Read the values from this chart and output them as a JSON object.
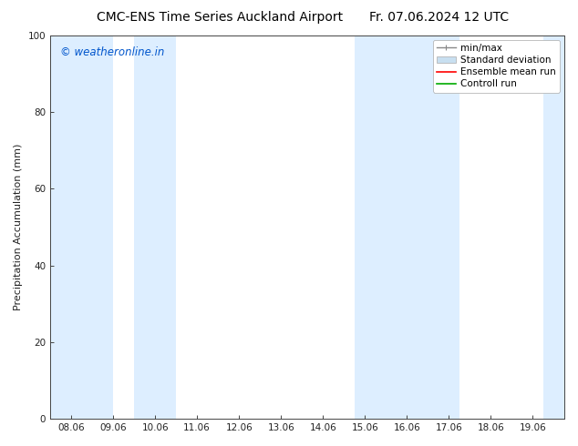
{
  "title_left": "CMC-ENS Time Series Auckland Airport",
  "title_right": "Fr. 07.06.2024 12 UTC",
  "ylabel": "Precipitation Accumulation (mm)",
  "xlabel": "",
  "watermark": "© weatheronline.in",
  "watermark_color": "#0055cc",
  "ylim": [
    0,
    100
  ],
  "xlim_start": 7.5,
  "xlim_end": 19.75,
  "xtick_labels": [
    "08.06",
    "09.06",
    "10.06",
    "11.06",
    "12.06",
    "13.06",
    "14.06",
    "15.06",
    "16.06",
    "17.06",
    "18.06",
    "19.06"
  ],
  "xtick_positions": [
    8.0,
    9.0,
    10.0,
    11.0,
    12.0,
    13.0,
    14.0,
    15.0,
    16.0,
    17.0,
    18.0,
    19.0
  ],
  "ytick_labels": [
    "0",
    "20",
    "40",
    "60",
    "80",
    "100"
  ],
  "ytick_positions": [
    0,
    20,
    40,
    60,
    80,
    100
  ],
  "shaded_bands": [
    {
      "x_start": 7.5,
      "x_end": 9.0,
      "color": "#ddeeff",
      "alpha": 1.0
    },
    {
      "x_start": 9.5,
      "x_end": 10.5,
      "color": "#ddeeff",
      "alpha": 1.0
    },
    {
      "x_start": 14.75,
      "x_end": 15.25,
      "color": "#ddeeff",
      "alpha": 1.0
    },
    {
      "x_start": 15.25,
      "x_end": 17.25,
      "color": "#ddeeff",
      "alpha": 1.0
    },
    {
      "x_start": 19.25,
      "x_end": 19.75,
      "color": "#ddeeff",
      "alpha": 1.0
    }
  ],
  "legend_entries": [
    {
      "label": "min/max",
      "style": "minmax",
      "color": "#888888",
      "lw": 1.0
    },
    {
      "label": "Standard deviation",
      "style": "box",
      "color": "#c8dff0",
      "lw": 1.0
    },
    {
      "label": "Ensemble mean run",
      "style": "line",
      "color": "#ff0000",
      "lw": 1.2
    },
    {
      "label": "Controll run",
      "style": "line",
      "color": "#00aa00",
      "lw": 1.2
    }
  ],
  "background_color": "#ffffff",
  "plot_bg_color": "#ffffff",
  "border_color": "#444444",
  "tick_color": "#444444",
  "font_size_title": 10,
  "font_size_axis": 8,
  "font_size_tick": 7.5,
  "font_size_legend": 7.5,
  "font_size_watermark": 8.5
}
